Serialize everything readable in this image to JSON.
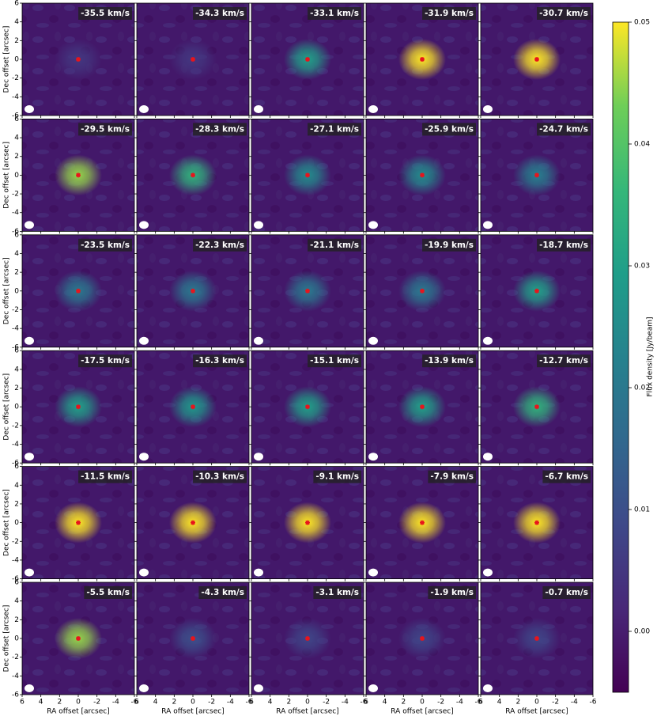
{
  "chart_data": {
    "type": "channel-map",
    "xlabel": "RA offset [arcsec]",
    "ylabel": "Dec offset [arcsec]",
    "xlim": [
      6,
      -6
    ],
    "ylim": [
      -6,
      6
    ],
    "xticks": [
      6,
      4,
      2,
      0,
      -2,
      -4,
      -6
    ],
    "yticks": [
      -6,
      -4,
      -2,
      0,
      2,
      4,
      6
    ],
    "panels": [
      {
        "label": "-35.5 km/s",
        "peak": 0.005
      },
      {
        "label": "-34.3 km/s",
        "peak": 0.005
      },
      {
        "label": "-33.1 km/s",
        "peak": 0.03
      },
      {
        "label": "-31.9 km/s",
        "peak": 0.05
      },
      {
        "label": "-30.7 km/s",
        "peak": 0.05
      },
      {
        "label": "-29.5 km/s",
        "peak": 0.045
      },
      {
        "label": "-28.3 km/s",
        "peak": 0.035
      },
      {
        "label": "-27.1 km/s",
        "peak": 0.025
      },
      {
        "label": "-25.9 km/s",
        "peak": 0.025
      },
      {
        "label": "-24.7 km/s",
        "peak": 0.022
      },
      {
        "label": "-23.5 km/s",
        "peak": 0.02
      },
      {
        "label": "-22.3 km/s",
        "peak": 0.02
      },
      {
        "label": "-21.1 km/s",
        "peak": 0.02
      },
      {
        "label": "-19.9 km/s",
        "peak": 0.02
      },
      {
        "label": "-18.7 km/s",
        "peak": 0.03
      },
      {
        "label": "-17.5 km/s",
        "peak": 0.03
      },
      {
        "label": "-16.3 km/s",
        "peak": 0.028
      },
      {
        "label": "-15.1 km/s",
        "peak": 0.03
      },
      {
        "label": "-13.9 km/s",
        "peak": 0.03
      },
      {
        "label": "-12.7 km/s",
        "peak": 0.035
      },
      {
        "label": "-11.5 km/s",
        "peak": 0.05
      },
      {
        "label": "-10.3 km/s",
        "peak": 0.05
      },
      {
        "label": "-9.1 km/s",
        "peak": 0.05
      },
      {
        "label": "-7.9 km/s",
        "peak": 0.05
      },
      {
        "label": "-6.7 km/s",
        "peak": 0.05
      },
      {
        "label": "-5.5 km/s",
        "peak": 0.045
      },
      {
        "label": "-4.3 km/s",
        "peak": 0.01
      },
      {
        "label": "-3.1 km/s",
        "peak": 0.008
      },
      {
        "label": "-1.9 km/s",
        "peak": 0.008
      },
      {
        "label": "-0.7 km/s",
        "peak": 0.008
      }
    ],
    "colorbar": {
      "label": "Flux density [Jy/beam]",
      "lim": [
        -0.005,
        0.05
      ],
      "ticks": [
        {
          "value": 0,
          "label": "0.00"
        },
        0.01,
        0.02,
        0.03,
        0.04,
        0.05
      ]
    }
  }
}
